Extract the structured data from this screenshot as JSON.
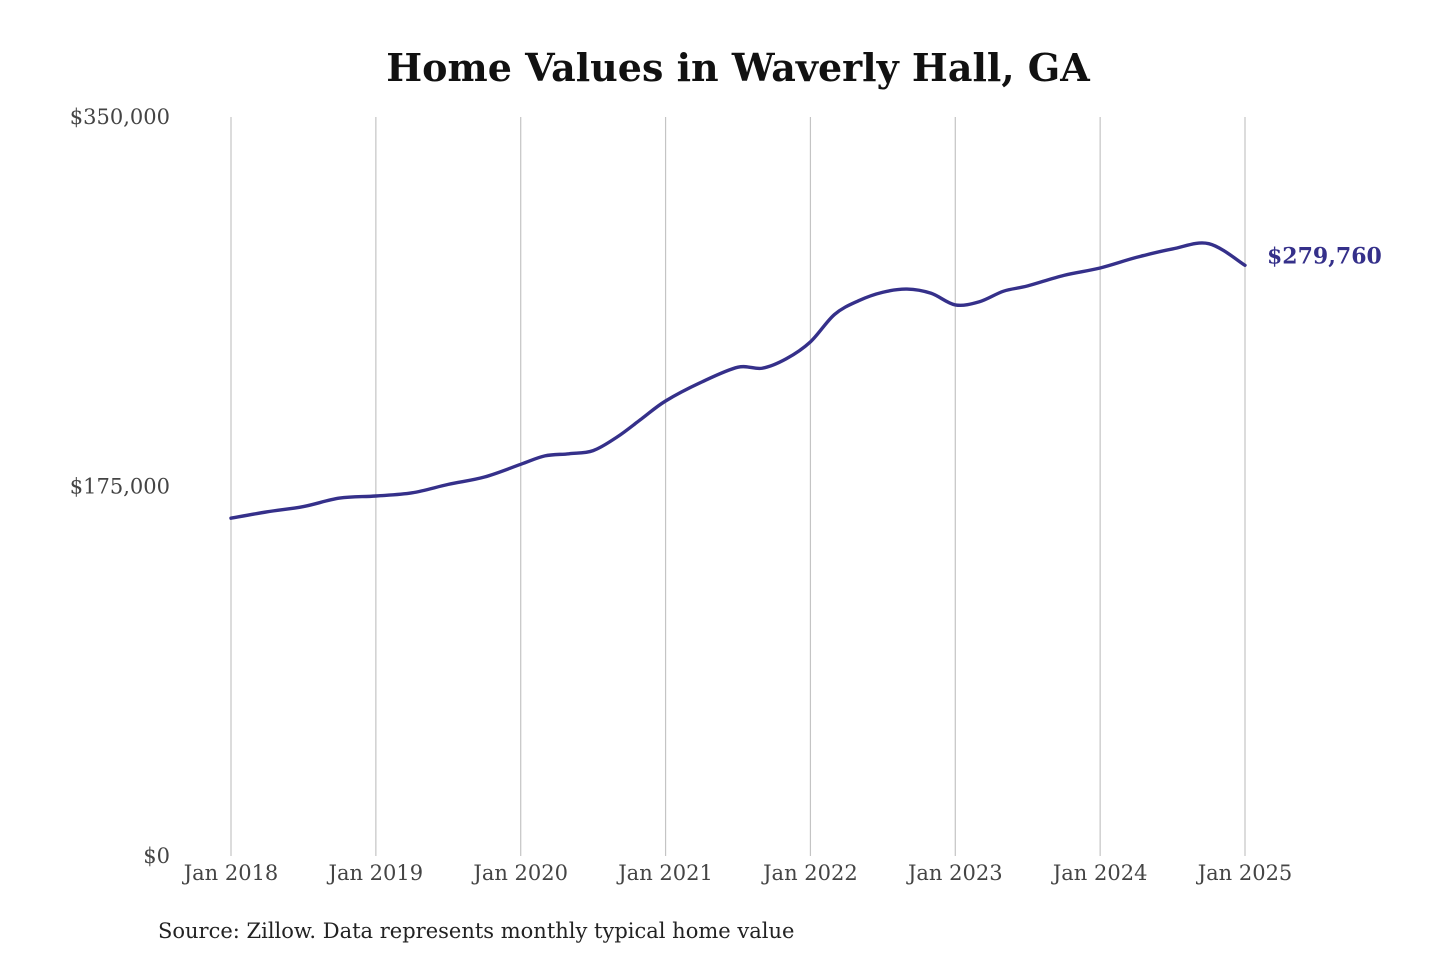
{
  "chart_data": {
    "type": "line",
    "title": "Home Values in Waverly Hall, GA",
    "xlabel": "",
    "ylabel": "",
    "ylim": [
      0,
      350000
    ],
    "xlim": [
      "2018-01",
      "2025-01"
    ],
    "grid": "vertical",
    "legend": "none",
    "y_ticks": [
      {
        "value": 0,
        "label": "$0"
      },
      {
        "value": 175000,
        "label": "$175,000"
      },
      {
        "value": 350000,
        "label": "$350,000"
      }
    ],
    "x_ticks": [
      {
        "value": "2018-01",
        "label": "Jan 2018"
      },
      {
        "value": "2019-01",
        "label": "Jan 2019"
      },
      {
        "value": "2020-01",
        "label": "Jan 2020"
      },
      {
        "value": "2021-01",
        "label": "Jan 2021"
      },
      {
        "value": "2022-01",
        "label": "Jan 2022"
      },
      {
        "value": "2023-01",
        "label": "Jan 2023"
      },
      {
        "value": "2024-01",
        "label": "Jan 2024"
      },
      {
        "value": "2025-01",
        "label": "Jan 2025"
      }
    ],
    "series": [
      {
        "color": "#35308a",
        "end_label": "$279,760",
        "points": [
          {
            "x": "2018-01",
            "y": 160000
          },
          {
            "x": "2018-04",
            "y": 163000
          },
          {
            "x": "2018-07",
            "y": 165500
          },
          {
            "x": "2018-10",
            "y": 169500
          },
          {
            "x": "2019-01",
            "y": 170500
          },
          {
            "x": "2019-04",
            "y": 172000
          },
          {
            "x": "2019-07",
            "y": 176000
          },
          {
            "x": "2019-10",
            "y": 179500
          },
          {
            "x": "2020-01",
            "y": 185500
          },
          {
            "x": "2020-03",
            "y": 189500
          },
          {
            "x": "2020-05",
            "y": 190500
          },
          {
            "x": "2020-07",
            "y": 192000
          },
          {
            "x": "2020-09",
            "y": 198500
          },
          {
            "x": "2020-11",
            "y": 207000
          },
          {
            "x": "2021-01",
            "y": 215500
          },
          {
            "x": "2021-04",
            "y": 224500
          },
          {
            "x": "2021-07",
            "y": 231500
          },
          {
            "x": "2021-09",
            "y": 231000
          },
          {
            "x": "2021-11",
            "y": 235500
          },
          {
            "x": "2022-01",
            "y": 243500
          },
          {
            "x": "2022-03",
            "y": 256500
          },
          {
            "x": "2022-05",
            "y": 263000
          },
          {
            "x": "2022-07",
            "y": 267000
          },
          {
            "x": "2022-09",
            "y": 268500
          },
          {
            "x": "2022-11",
            "y": 266500
          },
          {
            "x": "2023-01",
            "y": 261000
          },
          {
            "x": "2023-03",
            "y": 262500
          },
          {
            "x": "2023-05",
            "y": 267500
          },
          {
            "x": "2023-07",
            "y": 270000
          },
          {
            "x": "2023-10",
            "y": 275000
          },
          {
            "x": "2024-01",
            "y": 278500
          },
          {
            "x": "2024-04",
            "y": 283500
          },
          {
            "x": "2024-07",
            "y": 287500
          },
          {
            "x": "2024-10",
            "y": 290000
          },
          {
            "x": "2025-01",
            "y": 279760
          }
        ]
      }
    ]
  },
  "source_note": "Source: Zillow. Data represents monthly typical home value"
}
